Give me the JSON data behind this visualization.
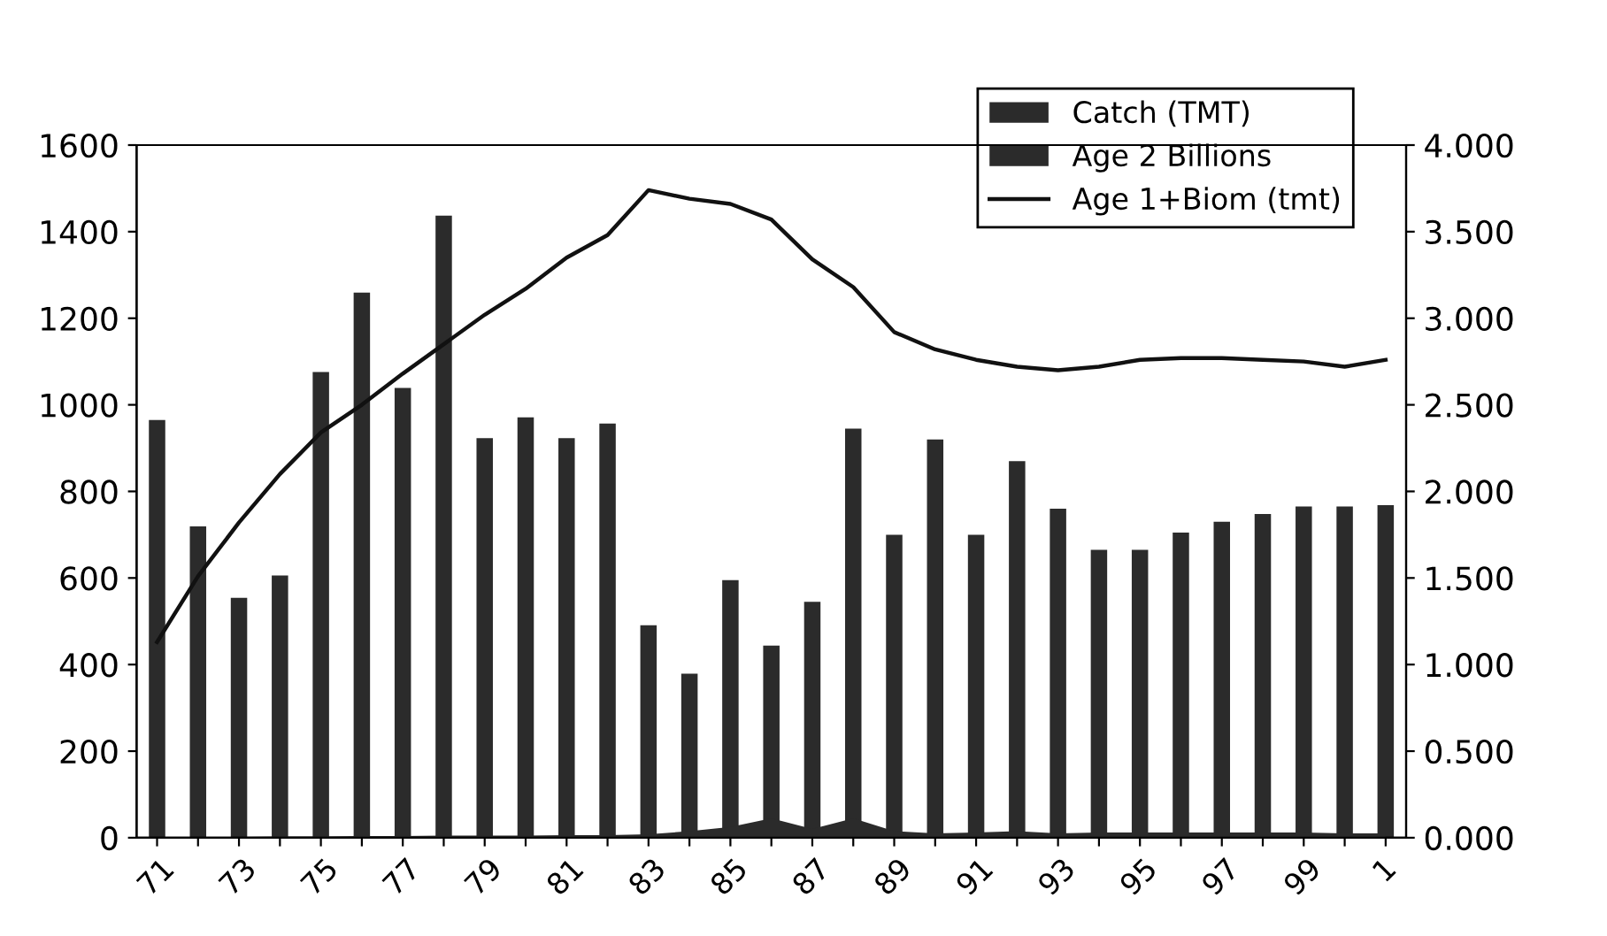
{
  "chart_data": {
    "type": "bar",
    "categories": [
      "71",
      null,
      "73",
      null,
      "75",
      null,
      "77",
      null,
      "79",
      null,
      "81",
      null,
      "83",
      null,
      "85",
      null,
      "87",
      null,
      "89",
      null,
      "91",
      null,
      "93",
      null,
      "95",
      null,
      "97",
      null,
      "99",
      null,
      "1"
    ],
    "series": [
      {
        "name": "Catch (TMT)",
        "color": "#2b2b2b",
        "values": [
          965,
          719,
          554,
          606,
          1076,
          1259,
          1039,
          1437,
          923,
          971,
          923,
          957,
          491,
          379,
          595,
          444,
          545,
          945,
          700,
          920,
          700,
          870,
          760,
          665,
          665,
          705,
          730,
          748,
          765,
          765,
          768
        ]
      },
      {
        "name": "Age 2 Billions",
        "type": "area",
        "color": "#2b2b2b",
        "values": [
          2,
          2,
          2,
          3,
          3,
          4,
          4,
          5,
          5,
          5,
          6,
          6,
          8,
          15,
          25,
          45,
          20,
          45,
          15,
          10,
          12,
          15,
          10,
          12,
          12,
          12,
          12,
          12,
          12,
          10,
          10
        ]
      },
      {
        "name": "Age 1+Biom (tmt)",
        "type": "line",
        "axis": "y2",
        "color": "#111111",
        "values": [
          1.13,
          1.51,
          1.82,
          2.1,
          2.34,
          2.5,
          2.68,
          2.85,
          3.02,
          3.17,
          3.35,
          3.48,
          3.74,
          3.69,
          3.66,
          3.57,
          3.34,
          3.18,
          2.92,
          2.82,
          2.76,
          2.72,
          2.7,
          2.72,
          2.76,
          2.77,
          2.77,
          2.76,
          2.75,
          2.72,
          2.76
        ]
      }
    ],
    "ylim": [
      0,
      1600
    ],
    "yticks": [
      0,
      200,
      400,
      600,
      800,
      1000,
      1200,
      1400,
      1600
    ],
    "y2lim": [
      0,
      4
    ],
    "y2ticks": [
      {
        "value": 0,
        "label": "0.000"
      },
      {
        "value": 0.5,
        "label": "0.500"
      },
      {
        "value": 1,
        "label": "1.000"
      },
      {
        "value": 1.5,
        "label": "1.500"
      },
      {
        "value": 2,
        "label": "2.000"
      },
      {
        "value": 2.5,
        "label": "2.500"
      },
      {
        "value": 3,
        "label": "3.000"
      },
      {
        "value": 3.5,
        "label": "3.500"
      },
      {
        "value": 4,
        "label": "4.000"
      }
    ],
    "legend": "top right",
    "grid": false
  }
}
